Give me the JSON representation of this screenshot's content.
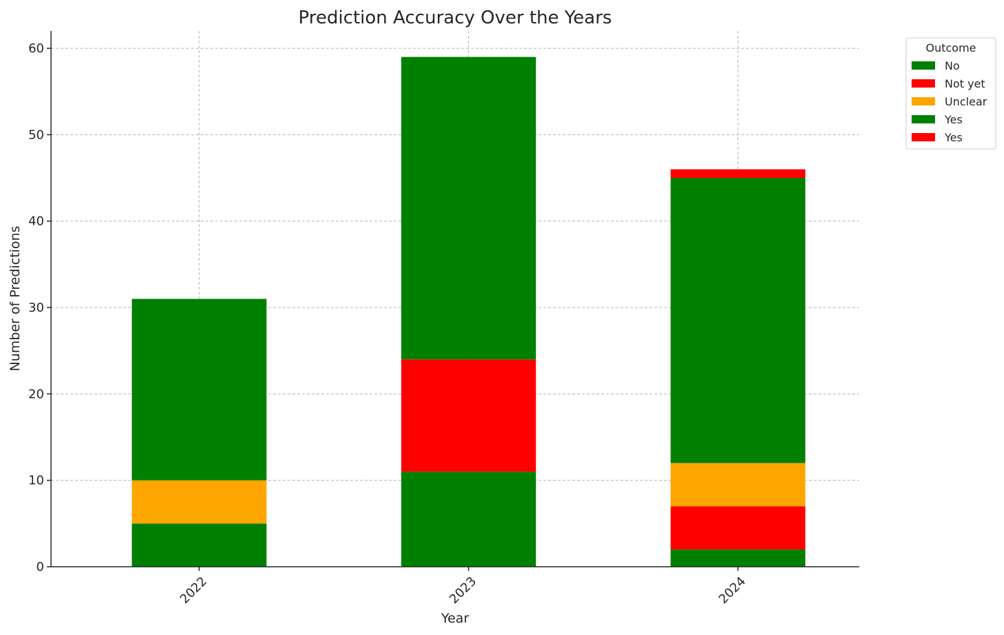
{
  "chart_data": {
    "type": "bar",
    "stacked": true,
    "title": "Prediction Accuracy Over the Years",
    "xlabel": "Year",
    "ylabel": "Number of Predictions",
    "categories": [
      "2022",
      "2023",
      "2024"
    ],
    "ylim": [
      0,
      62
    ],
    "yticks": [
      0,
      10,
      20,
      30,
      40,
      50,
      60
    ],
    "grid": true,
    "legend": {
      "title": "Outcome",
      "placement": "outside-top-right"
    },
    "series": [
      {
        "name": "No",
        "color": "#008000",
        "values": [
          5,
          11,
          2
        ]
      },
      {
        "name": "Not yet",
        "color": "#ff0000",
        "values": [
          0,
          13,
          5
        ]
      },
      {
        "name": "Unclear",
        "color": "#ffa500",
        "values": [
          5,
          0,
          5
        ]
      },
      {
        "name": "Yes",
        "color": "#008000",
        "values": [
          21,
          35,
          33
        ]
      },
      {
        "name": "Yes",
        "color": "#ff0000",
        "values": [
          0,
          0,
          1
        ]
      }
    ]
  }
}
